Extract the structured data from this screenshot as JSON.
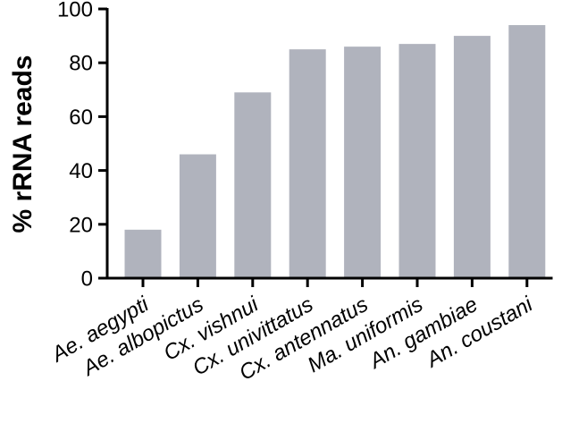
{
  "chart_data": {
    "type": "bar",
    "title": "",
    "xlabel": "",
    "ylabel": "% rRNA reads",
    "ylim": [
      0,
      100
    ],
    "yticks": [
      0,
      20,
      40,
      60,
      80,
      100
    ],
    "grid": false,
    "categories": [
      "Ae. aegypti",
      "Ae. albopictus",
      "Cx. vishnui",
      "Cx. univittatus",
      "Cx. antennatus",
      "Ma. uniformis",
      "An. gambiae",
      "An. coustani"
    ],
    "values": [
      18,
      46,
      69,
      85,
      86,
      87,
      90,
      94
    ],
    "colors": {
      "bar": "#b0b3bd",
      "axis": "#000000"
    }
  }
}
